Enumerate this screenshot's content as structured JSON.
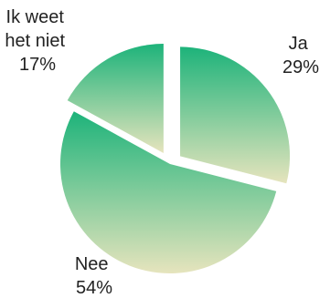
{
  "chart_data": {
    "type": "pie",
    "slices": [
      {
        "name": "Ja",
        "label_lines": [
          "Ja"
        ],
        "percent": "29%",
        "value": 29
      },
      {
        "name": "Nee",
        "label_lines": [
          "Nee"
        ],
        "percent": "54%",
        "value": 54
      },
      {
        "name": "Ik weet het niet",
        "label_lines": [
          "Ik weet",
          "het niet"
        ],
        "percent": "17%",
        "value": 17
      }
    ],
    "exploded": true,
    "gradient": {
      "top": "#1db37a",
      "bottom": "#e6e4bd"
    }
  }
}
